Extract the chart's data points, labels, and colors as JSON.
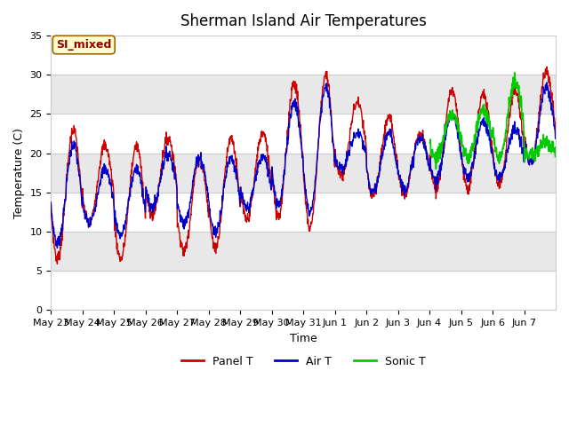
{
  "title": "Sherman Island Air Temperatures",
  "xlabel": "Time",
  "ylabel": "Temperature (C)",
  "ylim": [
    0,
    35
  ],
  "yticks": [
    0,
    5,
    10,
    15,
    20,
    25,
    30,
    35
  ],
  "xtick_labels": [
    "May 23",
    "May 24",
    "May 25",
    "May 26",
    "May 27",
    "May 28",
    "May 29",
    "May 30",
    "May 31",
    "Jun 1",
    "Jun 2",
    "Jun 3",
    "Jun 4",
    "Jun 5",
    "Jun 6",
    "Jun 7"
  ],
  "panel_color": "#cc0000",
  "air_color": "#0000cc",
  "sonic_color": "#00cc00",
  "plot_bg": "#ffffff",
  "band_color": "#e8e8e8",
  "legend_labels": [
    "Panel T",
    "Air T",
    "Sonic T"
  ],
  "annotation_text": "SI_mixed",
  "annotation_bg": "#ffffcc",
  "annotation_border": "#996600",
  "annotation_text_color": "#990000",
  "title_fontsize": 12,
  "axis_fontsize": 9,
  "tick_fontsize": 8,
  "legend_fontsize": 9
}
